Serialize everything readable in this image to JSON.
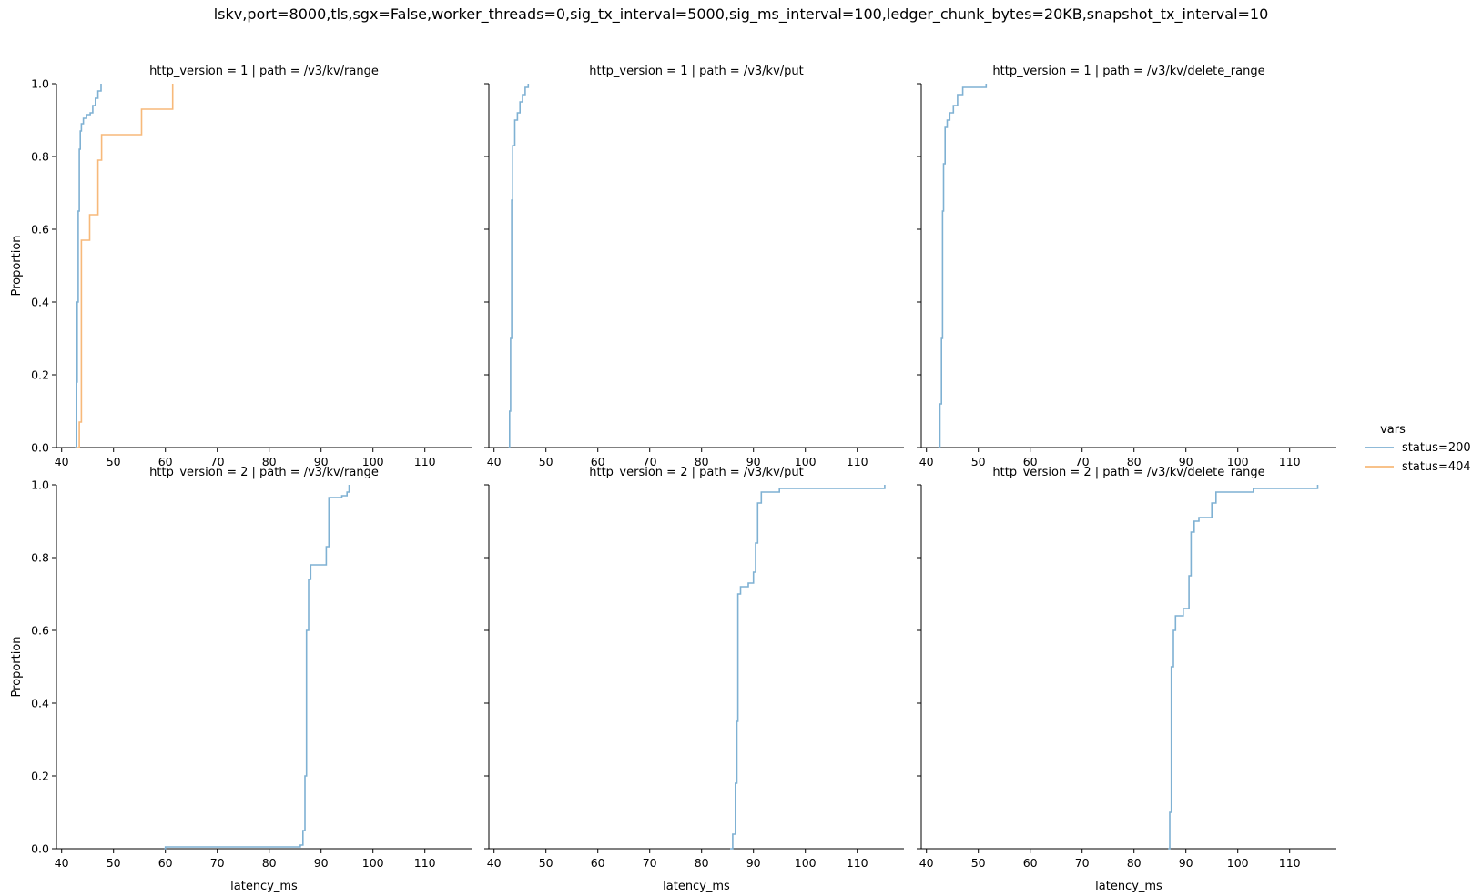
{
  "suptitle": "lskv,port=8000,tls,sgx=False,worker_threads=0,sig_tx_interval=5000,sig_ms_interval=100,ledger_chunk_bytes=20KB,snapshot_tx_interval=10",
  "legend": {
    "title": "vars",
    "entries": [
      {
        "label": "status=200",
        "color": "#7fb1d3"
      },
      {
        "label": "status=404",
        "color": "#f7b97a"
      }
    ]
  },
  "chart_data": [
    {
      "type": "line",
      "title": "http_version = 1 | path = /v3/kv/range",
      "xlabel": "",
      "ylabel": "Proportion",
      "xlim": [
        39,
        119
      ],
      "ylim": [
        0,
        1
      ],
      "xticks": [
        40,
        50,
        60,
        70,
        80,
        90,
        100,
        110
      ],
      "yticks": [
        0.0,
        0.2,
        0.4,
        0.6,
        0.8,
        1.0
      ],
      "series": [
        {
          "name": "status=200",
          "color": "#7fb1d3",
          "x": [
            42.6,
            42.9,
            43.0,
            43.2,
            43.4,
            43.6,
            43.8,
            44.2,
            44.8,
            45.5,
            46.0,
            46.5,
            47.0,
            47.6
          ],
          "y": [
            0.0,
            0.18,
            0.4,
            0.65,
            0.82,
            0.87,
            0.89,
            0.905,
            0.915,
            0.92,
            0.94,
            0.96,
            0.98,
            1.0
          ]
        },
        {
          "name": "status=404",
          "color": "#f7b97a",
          "x": [
            43.0,
            43.4,
            43.8,
            45.4,
            47.0,
            47.7,
            55.4,
            61.4
          ],
          "y": [
            0.0,
            0.07,
            0.57,
            0.64,
            0.79,
            0.86,
            0.93,
            1.0
          ]
        }
      ]
    },
    {
      "type": "line",
      "title": "http_version = 1 | path = /v3/kv/put",
      "xlabel": "",
      "ylabel": "",
      "xlim": [
        39,
        119
      ],
      "ylim": [
        0,
        1
      ],
      "xticks": [
        40,
        50,
        60,
        70,
        80,
        90,
        100,
        110
      ],
      "yticks": [
        0.0,
        0.2,
        0.4,
        0.6,
        0.8,
        1.0
      ],
      "series": [
        {
          "name": "status=200",
          "color": "#7fb1d3",
          "x": [
            42.8,
            43.0,
            43.2,
            43.4,
            43.6,
            44.0,
            44.5,
            45.0,
            45.5,
            46.0,
            46.6
          ],
          "y": [
            0.0,
            0.1,
            0.3,
            0.68,
            0.83,
            0.9,
            0.92,
            0.95,
            0.97,
            0.99,
            1.0
          ]
        }
      ]
    },
    {
      "type": "line",
      "title": "http_version = 1 | path = /v3/kv/delete_range",
      "xlabel": "",
      "ylabel": "",
      "xlim": [
        39,
        119
      ],
      "ylim": [
        0,
        1
      ],
      "xticks": [
        40,
        50,
        60,
        70,
        80,
        90,
        100,
        110
      ],
      "yticks": [
        0.0,
        0.2,
        0.4,
        0.6,
        0.8,
        1.0
      ],
      "series": [
        {
          "name": "status=200",
          "color": "#7fb1d3",
          "x": [
            42.3,
            42.6,
            42.9,
            43.1,
            43.3,
            43.6,
            44.0,
            44.5,
            45.2,
            46.0,
            47.0,
            51.5
          ],
          "y": [
            0.0,
            0.12,
            0.3,
            0.65,
            0.78,
            0.88,
            0.9,
            0.92,
            0.94,
            0.97,
            0.99,
            1.0
          ]
        }
      ]
    },
    {
      "type": "line",
      "title": "http_version = 2 | path = /v3/kv/range",
      "xlabel": "latency_ms",
      "ylabel": "Proportion",
      "xlim": [
        39,
        119
      ],
      "ylim": [
        0,
        1
      ],
      "xticks": [
        40,
        50,
        60,
        70,
        80,
        90,
        100,
        110
      ],
      "yticks": [
        0.0,
        0.2,
        0.4,
        0.6,
        0.8,
        1.0
      ],
      "series": [
        {
          "name": "status=200",
          "color": "#7fb1d3",
          "x": [
            59.8,
            60.0,
            86.0,
            86.5,
            86.9,
            87.2,
            87.6,
            88.0,
            91.0,
            91.5,
            94.0,
            95.0,
            95.4
          ],
          "y": [
            0.0,
            0.005,
            0.01,
            0.05,
            0.2,
            0.6,
            0.74,
            0.78,
            0.83,
            0.965,
            0.97,
            0.98,
            1.0
          ]
        }
      ]
    },
    {
      "type": "line",
      "title": "http_version = 2 | path = /v3/kv/put",
      "xlabel": "latency_ms",
      "ylabel": "",
      "xlim": [
        39,
        119
      ],
      "ylim": [
        0,
        1
      ],
      "xticks": [
        40,
        50,
        60,
        70,
        80,
        90,
        100,
        110
      ],
      "yticks": [
        0.0,
        0.2,
        0.4,
        0.6,
        0.8,
        1.0
      ],
      "series": [
        {
          "name": "status=200",
          "color": "#7fb1d3",
          "x": [
            85.5,
            86.0,
            86.5,
            86.8,
            87.0,
            87.5,
            89.0,
            90.0,
            90.4,
            90.8,
            91.5,
            95.0,
            115.3
          ],
          "y": [
            0.0,
            0.04,
            0.18,
            0.35,
            0.7,
            0.72,
            0.73,
            0.76,
            0.84,
            0.95,
            0.98,
            0.99,
            1.0
          ]
        }
      ]
    },
    {
      "type": "line",
      "title": "http_version = 2 | path = /v3/kv/delete_range",
      "xlabel": "latency_ms",
      "ylabel": "",
      "xlim": [
        39,
        119
      ],
      "ylim": [
        0,
        1
      ],
      "xticks": [
        40,
        50,
        60,
        70,
        80,
        90,
        100,
        110
      ],
      "yticks": [
        0.0,
        0.2,
        0.4,
        0.6,
        0.8,
        1.0
      ],
      "series": [
        {
          "name": "status=200",
          "color": "#7fb1d3",
          "x": [
            86.6,
            86.9,
            87.2,
            87.6,
            88.0,
            89.5,
            90.6,
            91.0,
            91.6,
            92.5,
            95.0,
            95.8,
            103.0,
            115.4
          ],
          "y": [
            0.0,
            0.1,
            0.5,
            0.6,
            0.64,
            0.66,
            0.75,
            0.87,
            0.9,
            0.91,
            0.95,
            0.98,
            0.99,
            1.0
          ]
        }
      ]
    }
  ]
}
